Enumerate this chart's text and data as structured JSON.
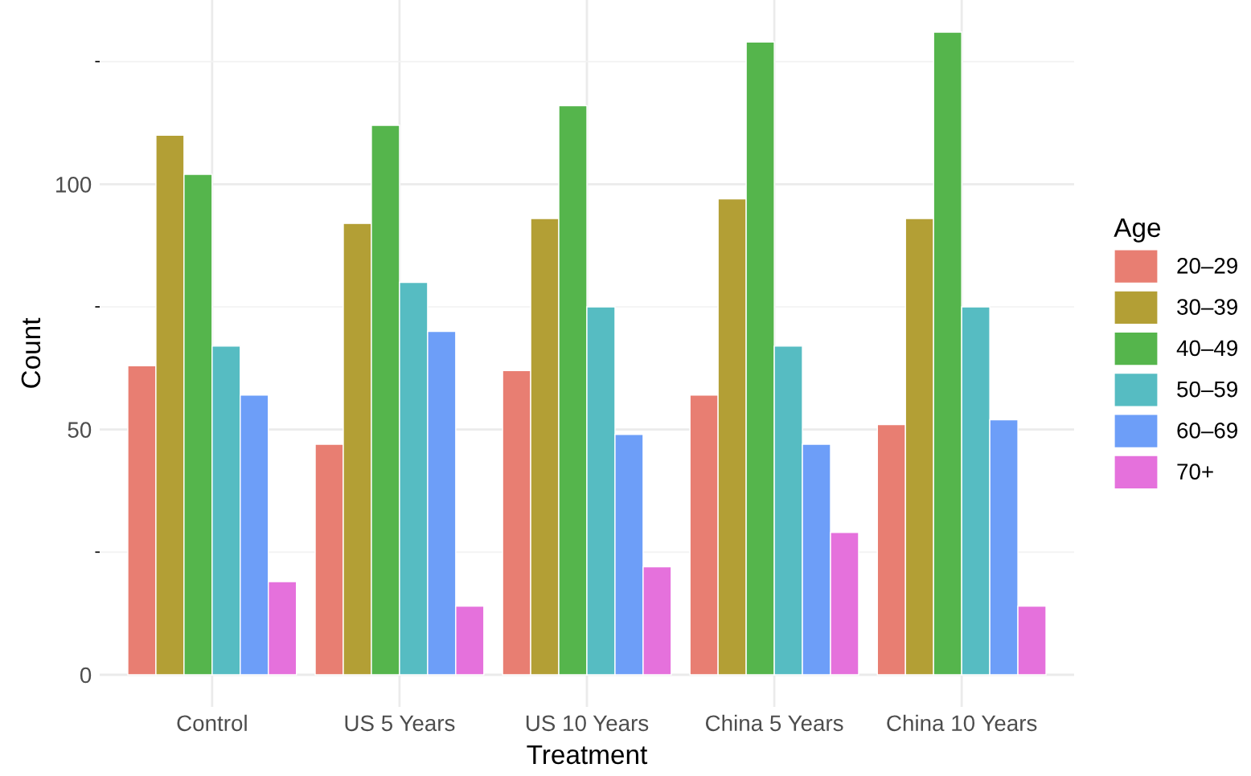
{
  "chart_data": {
    "type": "bar",
    "xlabel": "Treatment",
    "ylabel": "Count",
    "legend_title": "Age",
    "categories": [
      "Control",
      "US 5 Years",
      "US 10 Years",
      "China 5 Years",
      "China 10 Years"
    ],
    "series": [
      {
        "name": "20–29",
        "color": "#e87e72",
        "values": [
          63,
          47,
          62,
          57,
          51
        ]
      },
      {
        "name": "30–39",
        "color": "#b39f35",
        "values": [
          110,
          92,
          93,
          97,
          93
        ]
      },
      {
        "name": "40–49",
        "color": "#55b54c",
        "values": [
          102,
          112,
          116,
          129,
          131
        ]
      },
      {
        "name": "50–59",
        "color": "#56bcc2",
        "values": [
          67,
          80,
          75,
          67,
          75
        ]
      },
      {
        "name": "60–69",
        "color": "#6d9ef8",
        "values": [
          57,
          70,
          49,
          47,
          52
        ]
      },
      {
        "name": "70+",
        "color": "#e571dc",
        "values": [
          19,
          14,
          22,
          29,
          14
        ]
      }
    ],
    "ylim": [
      -6.55,
      137.55
    ],
    "yticks": [
      0,
      {
        "value": 25,
        "label": null
      },
      50,
      {
        "value": 75,
        "label": null
      },
      100,
      {
        "value": 125,
        "label": null
      }
    ],
    "grid": true,
    "legend": "right"
  }
}
